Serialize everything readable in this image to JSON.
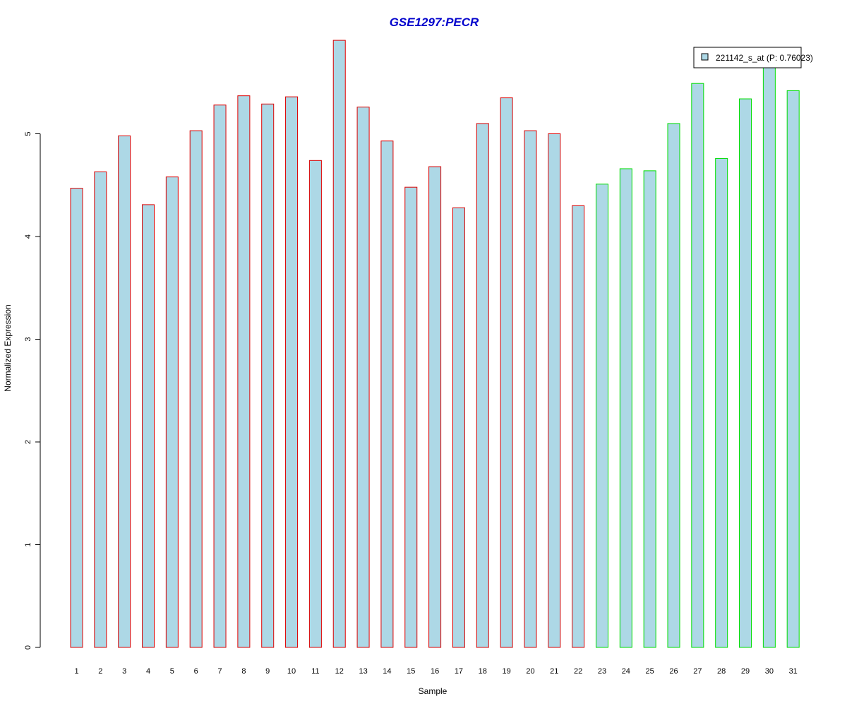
{
  "chart_data": {
    "type": "bar",
    "title": "GSE1297:PECR",
    "xlabel": "Sample",
    "ylabel": "Normalized Expression",
    "categories": [
      "1",
      "2",
      "3",
      "4",
      "5",
      "6",
      "7",
      "8",
      "9",
      "10",
      "11",
      "12",
      "13",
      "14",
      "15",
      "16",
      "17",
      "18",
      "19",
      "20",
      "21",
      "22",
      "23",
      "24",
      "25",
      "26",
      "27",
      "28",
      "29",
      "30",
      "31"
    ],
    "series": [
      {
        "name": "221142_s_at (P: 0.76023)",
        "values": [
          4.47,
          4.63,
          4.98,
          4.31,
          4.58,
          5.03,
          5.28,
          5.37,
          5.29,
          5.36,
          4.74,
          5.91,
          5.26,
          4.93,
          4.48,
          4.68,
          4.28,
          5.1,
          5.35,
          5.03,
          5.0,
          4.3,
          4.51,
          4.66,
          4.64,
          5.1,
          5.49,
          4.76,
          5.34,
          5.67,
          5.42
        ]
      }
    ],
    "group_of_sample": [
      1,
      1,
      1,
      1,
      1,
      1,
      1,
      1,
      1,
      1,
      1,
      1,
      1,
      1,
      1,
      1,
      1,
      1,
      1,
      1,
      1,
      1,
      2,
      2,
      2,
      2,
      2,
      2,
      2,
      2,
      2
    ],
    "yticks": [
      0,
      1,
      2,
      3,
      4,
      5
    ],
    "ylim": [
      0,
      5.91
    ],
    "grid": false,
    "legend_position": "top-right",
    "colors": {
      "title": "#0000cc",
      "bar_fill": "#add8e6",
      "group1_border": "#dd0000",
      "group2_border": "#00dd00",
      "axis": "#000000"
    }
  }
}
